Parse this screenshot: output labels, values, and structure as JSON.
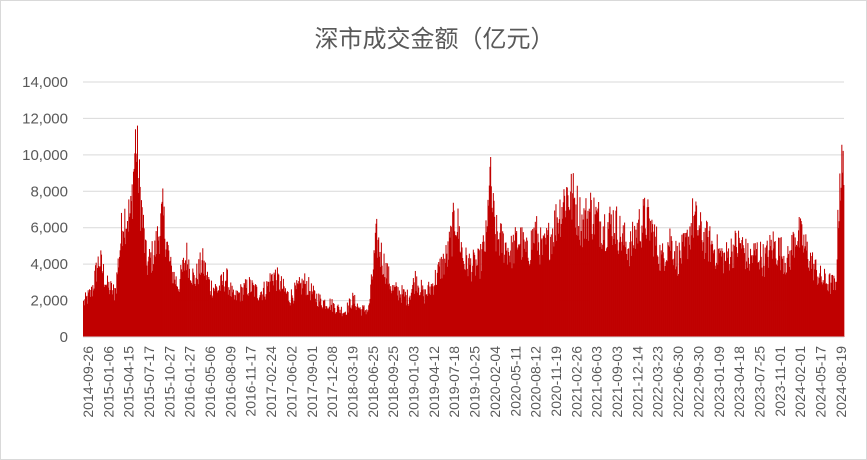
{
  "chart_data": {
    "type": "bar",
    "title": "深市成交金额（亿元）",
    "xlabel": "",
    "ylabel": "",
    "ylim": [
      0,
      14000
    ],
    "yticks": [
      "0",
      "2,000",
      "4,000",
      "6,000",
      "8,000",
      "10,000",
      "12,000",
      "14,000"
    ],
    "grid": true,
    "legend": "none",
    "bar_color": "#c00000",
    "categories": [
      "2014-09-26",
      "2015-01-06",
      "2015-04-15",
      "2015-07-17",
      "2015-10-27",
      "2016-01-27",
      "2016-05-06",
      "2016-08-09",
      "2016-11-17",
      "2017-02-24",
      "2017-06-02",
      "2017-09-01",
      "2017-12-08",
      "2018-03-19",
      "2018-06-25",
      "2018-09-25",
      "2019-01-03",
      "2019-04-12",
      "2019-07-18",
      "2019-10-25",
      "2020-02-04",
      "2020-05-11",
      "2020-08-12",
      "2020-11-19",
      "2021-02-26",
      "2021-06-03",
      "2021-09-03",
      "2021-12-14",
      "2022-03-23",
      "2022-06-30",
      "2022-09-30",
      "2023-01-09",
      "2023-04-18",
      "2023-07-25",
      "2023-11-01",
      "2024-02-01",
      "2024-05-17",
      "2024-08-19"
    ],
    "anchor_values": [
      [
        0,
        2000
      ],
      [
        1,
        2600
      ],
      [
        2,
        4600
      ],
      [
        3,
        3000
      ],
      [
        4,
        2600
      ],
      [
        5,
        7000
      ],
      [
        6,
        7200
      ],
      [
        6.6,
        11700
      ],
      [
        7,
        9200
      ],
      [
        8,
        4200
      ],
      [
        9,
        5000
      ],
      [
        10,
        7200
      ],
      [
        11,
        4000
      ],
      [
        12,
        3000
      ],
      [
        13,
        4800
      ],
      [
        14,
        3300
      ],
      [
        15,
        4400
      ],
      [
        16,
        3000
      ],
      [
        17,
        2800
      ],
      [
        18,
        3500
      ],
      [
        19,
        2200
      ],
      [
        20,
        2700
      ],
      [
        21,
        3000
      ],
      [
        22,
        2600
      ],
      [
        23,
        2800
      ],
      [
        24,
        3700
      ],
      [
        25,
        3000
      ],
      [
        26,
        2300
      ],
      [
        27,
        2800
      ],
      [
        28,
        3200
      ],
      [
        29,
        2500
      ],
      [
        30,
        2100
      ],
      [
        31,
        2000
      ],
      [
        32,
        1700
      ],
      [
        33,
        1500
      ],
      [
        34,
        2200
      ],
      [
        35,
        1600
      ],
      [
        36,
        1600
      ],
      [
        37,
        5800
      ],
      [
        38,
        4200
      ],
      [
        39,
        2800
      ],
      [
        40,
        2600
      ],
      [
        41,
        2300
      ],
      [
        42,
        3500
      ],
      [
        43,
        2400
      ],
      [
        44,
        3000
      ],
      [
        45,
        4000
      ],
      [
        46,
        4800
      ],
      [
        47,
        7200
      ],
      [
        48,
        4500
      ],
      [
        49,
        4200
      ],
      [
        50,
        4300
      ],
      [
        51,
        6000
      ],
      [
        51.2,
        9800
      ],
      [
        52,
        6000
      ],
      [
        53,
        5500
      ],
      [
        54,
        5000
      ],
      [
        55,
        5800
      ],
      [
        56,
        4800
      ],
      [
        57,
        6200
      ],
      [
        58,
        5000
      ],
      [
        59,
        6000
      ],
      [
        60,
        7200
      ],
      [
        61,
        8500
      ],
      [
        62,
        8000
      ],
      [
        63,
        6600
      ],
      [
        64,
        7400
      ],
      [
        65,
        6800
      ],
      [
        66,
        6500
      ],
      [
        67,
        6800
      ],
      [
        68,
        5800
      ],
      [
        69,
        5200
      ],
      [
        70,
        6400
      ],
      [
        71,
        7000
      ],
      [
        72,
        6000
      ],
      [
        73,
        4500
      ],
      [
        74,
        5800
      ],
      [
        75,
        4600
      ],
      [
        76,
        5200
      ],
      [
        77,
        7000
      ],
      [
        78,
        6000
      ],
      [
        79,
        5500
      ],
      [
        80,
        5000
      ],
      [
        81,
        4600
      ],
      [
        82,
        5200
      ],
      [
        83,
        5500
      ],
      [
        84,
        4500
      ],
      [
        85,
        5000
      ],
      [
        86,
        4500
      ],
      [
        87,
        5400
      ],
      [
        88,
        5000
      ],
      [
        89,
        4400
      ],
      [
        90,
        6200
      ],
      [
        91,
        5400
      ],
      [
        92,
        4300
      ],
      [
        93,
        3500
      ],
      [
        94,
        3200
      ],
      [
        95,
        3000
      ],
      [
        95.5,
        9600
      ],
      [
        96,
        9600
      ]
    ]
  }
}
